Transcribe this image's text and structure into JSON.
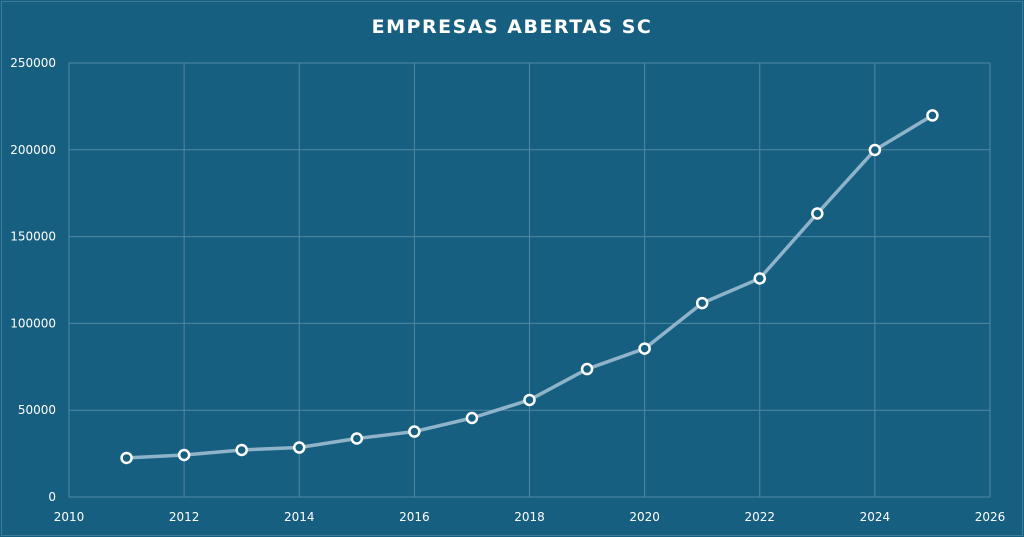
{
  "chart_data": {
    "type": "line",
    "title": "EMPRESAS ABERTAS SC",
    "xlabel": "",
    "ylabel": "",
    "xlim": [
      2010,
      2026
    ],
    "ylim": [
      0,
      250000
    ],
    "x_ticks": [
      "2010",
      "2012",
      "2014",
      "2016",
      "2018",
      "2020",
      "2022",
      "2024",
      "2026"
    ],
    "y_ticks": [
      "0",
      "50000",
      "100000",
      "150000",
      "200000",
      "250000"
    ],
    "grid": true,
    "legend": "none",
    "colors": {
      "background": "#175f80",
      "line": "#8fb3c8",
      "marker_fill": "#175f80",
      "marker_stroke": "#ffffff",
      "grid": "#4f88a3"
    },
    "series": [
      {
        "x": [
          2011,
          2012,
          2013,
          2014,
          2015,
          2016,
          2017,
          2018,
          2019,
          2020,
          2021,
          2022,
          2023,
          2024,
          2025
        ],
        "values": [
          22500,
          24200,
          27100,
          28500,
          33700,
          37700,
          45500,
          55900,
          73700,
          85500,
          111700,
          125900,
          163300,
          199900,
          219800
        ]
      }
    ]
  }
}
